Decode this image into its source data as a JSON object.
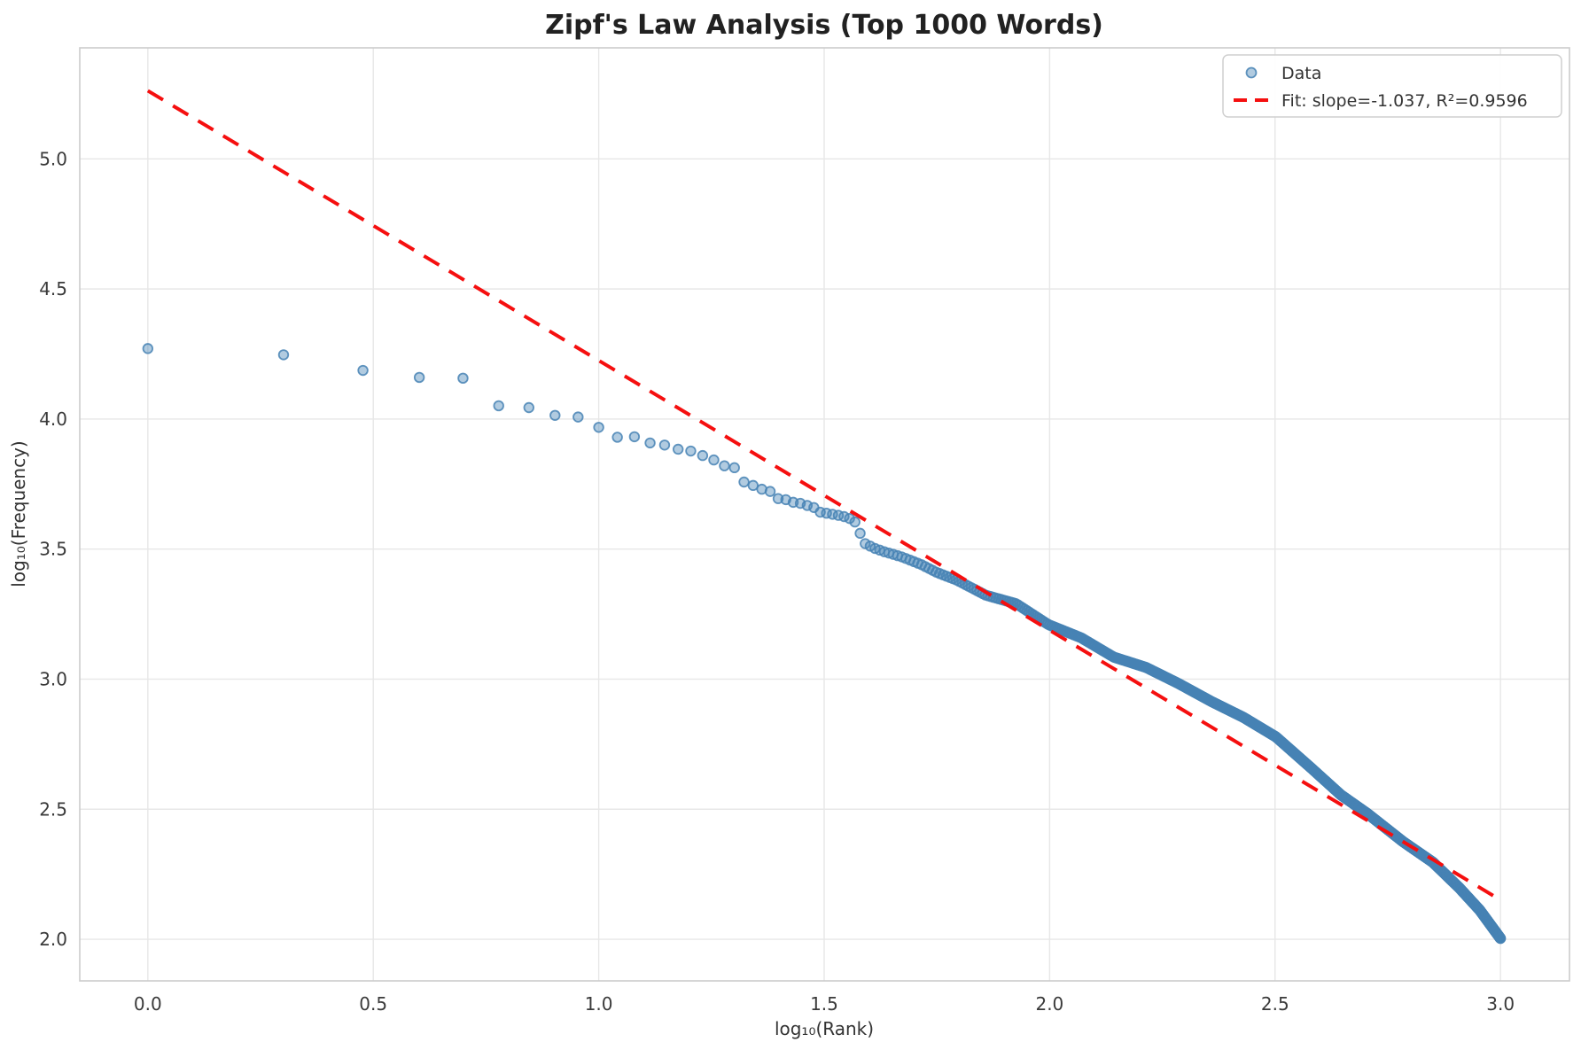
{
  "chart_data": {
    "type": "scatter",
    "title": "Zipf's Law Analysis (Top 1000 Words)",
    "xlabel": "log₁₀(Rank)",
    "ylabel": "log₁₀(Frequency)",
    "xlim": [
      -0.151,
      3.153
    ],
    "ylim": [
      1.84,
      5.427
    ],
    "x_ticks": [
      0.0,
      0.5,
      1.0,
      1.5,
      2.0,
      2.5,
      3.0
    ],
    "x_tick_labels": [
      "0.0",
      "0.5",
      "1.0",
      "1.5",
      "2.0",
      "2.5",
      "3.0"
    ],
    "y_ticks": [
      2.0,
      2.5,
      3.0,
      3.5,
      4.0,
      4.5,
      5.0
    ],
    "y_tick_labels": [
      "2.0",
      "2.5",
      "3.0",
      "3.5",
      "4.0",
      "4.5",
      "5.0"
    ],
    "grid": true,
    "legend_position": "upper right",
    "legend": {
      "entries": [
        {
          "label": "Data",
          "marker": "circle",
          "color": "#4682b4"
        },
        {
          "label": "Fit: slope=-1.037, R²=0.9596",
          "marker": "dashed-line",
          "color": "#ff0000"
        }
      ]
    },
    "series": [
      {
        "name": "Data",
        "kind": "scatter",
        "marker": "circle",
        "color": "#4682b4",
        "n_points": 1000,
        "x_definition": "log10(rank) for rank = 1..1000",
        "curve_anchors": [
          [
            0.0,
            4.271
          ],
          [
            0.301,
            4.247
          ],
          [
            0.477,
            4.187
          ],
          [
            0.602,
            4.16
          ],
          [
            0.699,
            4.157
          ],
          [
            0.778,
            4.051
          ],
          [
            0.845,
            4.044
          ],
          [
            0.903,
            4.014
          ],
          [
            0.954,
            4.008
          ],
          [
            1.0,
            3.968
          ],
          [
            1.041,
            3.93
          ],
          [
            1.079,
            3.932
          ],
          [
            1.114,
            3.908
          ],
          [
            1.146,
            3.9
          ],
          [
            1.176,
            3.884
          ],
          [
            1.204,
            3.877
          ],
          [
            1.23,
            3.86
          ],
          [
            1.255,
            3.843
          ],
          [
            1.279,
            3.82
          ],
          [
            1.301,
            3.813
          ],
          [
            1.322,
            3.758
          ],
          [
            1.342,
            3.745
          ],
          [
            1.362,
            3.73
          ],
          [
            1.38,
            3.722
          ],
          [
            1.398,
            3.694
          ],
          [
            1.415,
            3.69
          ],
          [
            1.431,
            3.68
          ],
          [
            1.447,
            3.676
          ],
          [
            1.462,
            3.668
          ],
          [
            1.477,
            3.66
          ],
          [
            1.491,
            3.642
          ],
          [
            1.505,
            3.638
          ],
          [
            1.518,
            3.634
          ],
          [
            1.531,
            3.63
          ],
          [
            1.544,
            3.625
          ],
          [
            1.556,
            3.618
          ],
          [
            1.568,
            3.605
          ],
          [
            1.58,
            3.56
          ],
          [
            1.591,
            3.521
          ],
          [
            1.612,
            3.503
          ],
          [
            1.633,
            3.49
          ],
          [
            1.653,
            3.48
          ],
          [
            1.672,
            3.47
          ],
          [
            1.69,
            3.458
          ],
          [
            1.716,
            3.44
          ],
          [
            1.75,
            3.41
          ],
          [
            1.795,
            3.38
          ],
          [
            1.858,
            3.323
          ],
          [
            1.926,
            3.29
          ],
          [
            1.997,
            3.21
          ],
          [
            2.07,
            3.159
          ],
          [
            2.142,
            3.085
          ],
          [
            2.214,
            3.045
          ],
          [
            2.286,
            2.983
          ],
          [
            2.359,
            2.914
          ],
          [
            2.43,
            2.853
          ],
          [
            2.502,
            2.778
          ],
          [
            2.581,
            2.657
          ],
          [
            2.646,
            2.555
          ],
          [
            2.705,
            2.483
          ],
          [
            2.784,
            2.375
          ],
          [
            2.85,
            2.296
          ],
          [
            2.909,
            2.197
          ],
          [
            2.954,
            2.112
          ],
          [
            3.0,
            2.003
          ]
        ]
      },
      {
        "name": "Fit",
        "kind": "line",
        "style": "dashed",
        "color": "#ff0000",
        "slope": -1.037,
        "intercept": 5.262,
        "r_squared": 0.9596,
        "x_range": [
          0.0,
          3.0
        ]
      }
    ]
  },
  "colors": {
    "scatter_fill": "rgba(70,130,180,0.42)",
    "scatter_edge": "rgba(70,130,180,0.85)",
    "fit_line": "#f50f0f",
    "grid": "#e7e7e7",
    "spine": "#cccccc",
    "background": "#ffffff"
  }
}
